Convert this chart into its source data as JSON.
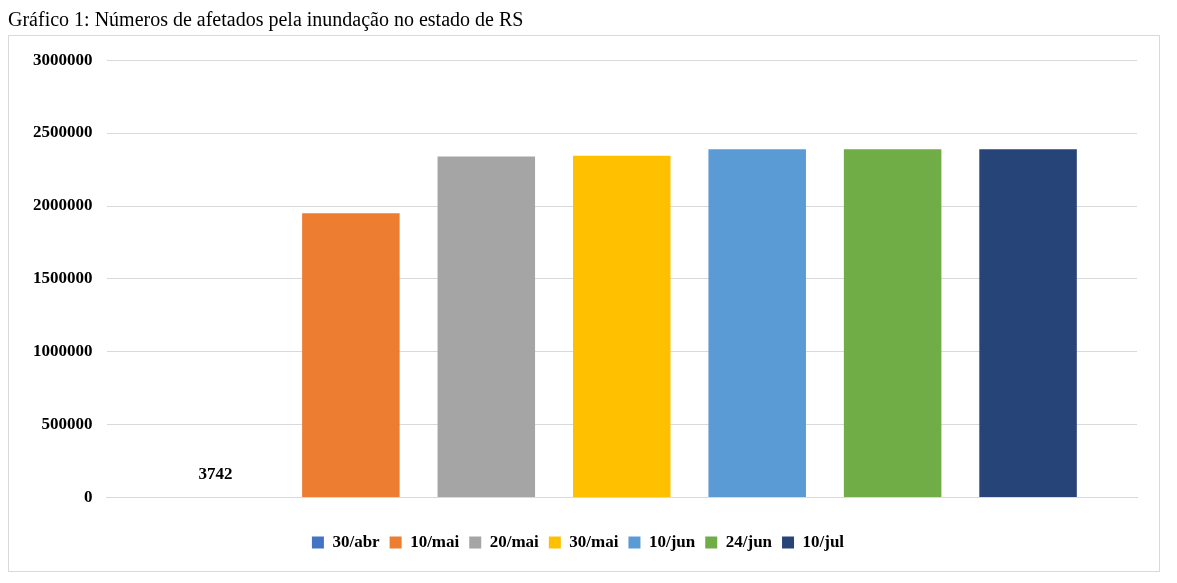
{
  "chart_data": {
    "type": "bar",
    "title": "Gráfico 1: Números de afetados pela inundação no estado de RS",
    "categories": [
      null
    ],
    "series": [
      {
        "name": "30/abr",
        "color": "#4472c4",
        "values": [
          3742
        ],
        "value_labels": [
          "3742"
        ]
      },
      {
        "name": "10/mai",
        "color": "#ed7d31",
        "values": [
          1950000
        ]
      },
      {
        "name": "20/mai",
        "color": "#a5a5a5",
        "values": [
          2340000
        ]
      },
      {
        "name": "30/mai",
        "color": "#ffc000",
        "values": [
          2345000
        ]
      },
      {
        "name": "10/jun",
        "color": "#5b9bd5",
        "values": [
          2390000
        ]
      },
      {
        "name": "24/jun",
        "color": "#70ad47",
        "values": [
          2390000
        ]
      },
      {
        "name": "10/jul",
        "color": "#264478",
        "values": [
          2390000
        ]
      }
    ],
    "ylim": [
      0,
      3000000
    ],
    "yticks": [
      0,
      500000,
      1000000,
      1500000,
      2000000,
      2500000,
      3000000
    ],
    "grid": "y",
    "legend": "bottom"
  }
}
